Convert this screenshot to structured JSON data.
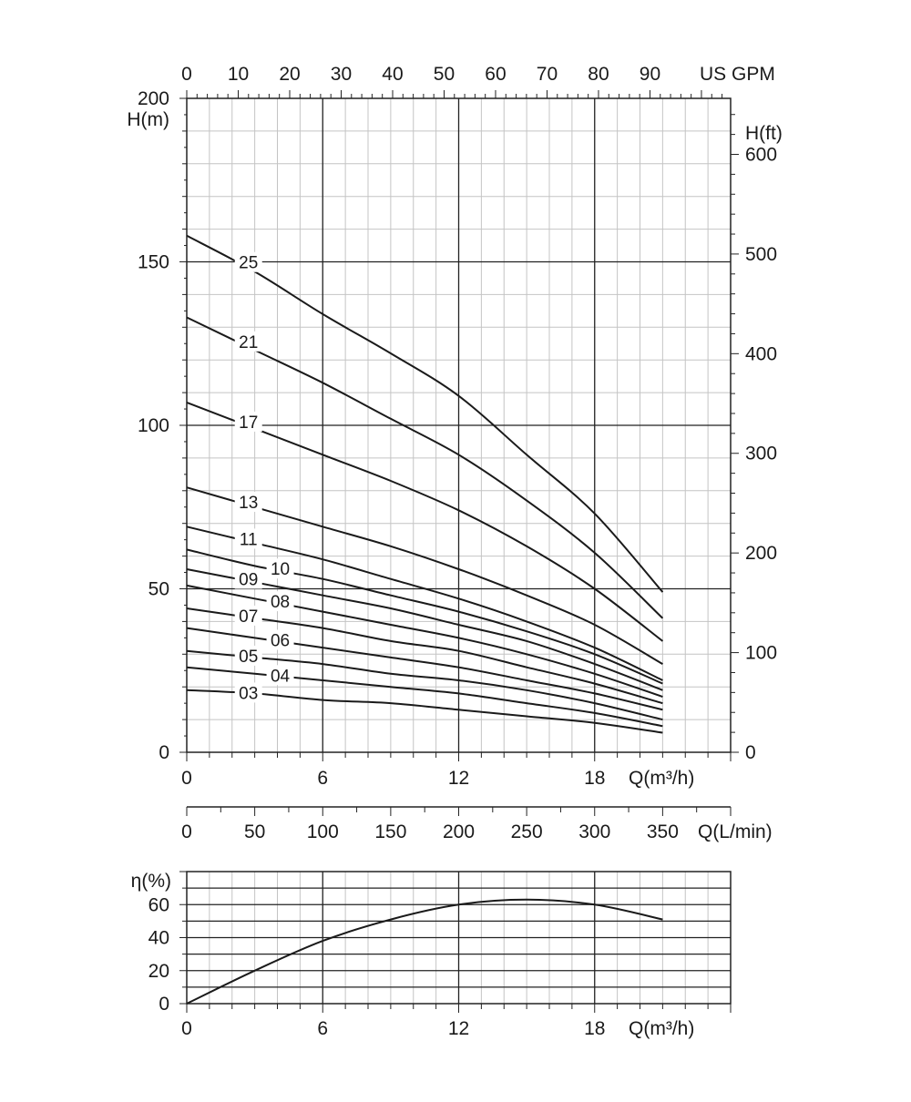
{
  "chart_data": [
    {
      "type": "line",
      "title": "",
      "xlabel": "Q(m³/h)",
      "ylabel": "H(m)",
      "xlim": [
        0,
        24
      ],
      "ylim": [
        0,
        200
      ],
      "x_ticks": [
        "0",
        "6",
        "12",
        "18"
      ],
      "y_ticks": [
        "0",
        "50",
        "100",
        "150",
        "200"
      ],
      "grid": true,
      "secondary_axes": {
        "top": {
          "label": "US GPM",
          "range": [
            0,
            105.67
          ],
          "ticks": [
            "0",
            "10",
            "20",
            "30",
            "40",
            "50",
            "60",
            "70",
            "80",
            "90"
          ]
        },
        "right": {
          "label": "H(ft)",
          "range": [
            0,
            656.2
          ],
          "ticks": [
            "0",
            "100",
            "200",
            "300",
            "400",
            "500",
            "600"
          ]
        },
        "bottom_lmin": {
          "label": "Q(L/min)",
          "range": [
            0,
            400
          ],
          "ticks": [
            "0",
            "50",
            "100",
            "150",
            "200",
            "250",
            "300",
            "350"
          ]
        }
      },
      "series": [
        {
          "name": "25",
          "x": [
            0,
            3,
            6,
            9,
            12,
            15,
            18,
            21
          ],
          "values": [
            158,
            147,
            134,
            122,
            109,
            91,
            73,
            49
          ]
        },
        {
          "name": "21",
          "x": [
            0,
            3,
            6,
            9,
            12,
            15,
            18,
            21
          ],
          "values": [
            133,
            123,
            113,
            102,
            91,
            77,
            61,
            41
          ]
        },
        {
          "name": "17",
          "x": [
            0,
            3,
            6,
            9,
            12,
            15,
            18,
            21
          ],
          "values": [
            107,
            99,
            91,
            83,
            74,
            63,
            50,
            34
          ]
        },
        {
          "name": "13",
          "x": [
            0,
            3,
            6,
            9,
            12,
            15,
            18,
            21
          ],
          "values": [
            81,
            75,
            69,
            63,
            56,
            48,
            39,
            27
          ]
        },
        {
          "name": "11",
          "x": [
            0,
            3,
            6,
            9,
            12,
            15,
            18,
            21
          ],
          "values": [
            69,
            64,
            59,
            53,
            47,
            40,
            32,
            22
          ]
        },
        {
          "name": "10",
          "x": [
            0,
            3,
            6,
            9,
            12,
            15,
            18,
            21
          ],
          "values": [
            62,
            57,
            53,
            48,
            43,
            37,
            30,
            21
          ]
        },
        {
          "name": "09",
          "x": [
            0,
            3,
            6,
            9,
            12,
            15,
            18,
            21
          ],
          "values": [
            56,
            52,
            48,
            44,
            39,
            34,
            27,
            19
          ]
        },
        {
          "name": "08",
          "x": [
            0,
            3,
            6,
            9,
            12,
            15,
            18,
            21
          ],
          "values": [
            51,
            47,
            43,
            39,
            35,
            30,
            24,
            17
          ]
        },
        {
          "name": "07",
          "x": [
            0,
            3,
            6,
            9,
            12,
            15,
            18,
            21
          ],
          "values": [
            44,
            41,
            38,
            34,
            31,
            26,
            21,
            15
          ]
        },
        {
          "name": "06",
          "x": [
            0,
            3,
            6,
            9,
            12,
            15,
            18,
            21
          ],
          "values": [
            38,
            35,
            32,
            29,
            26,
            22,
            18,
            13
          ]
        },
        {
          "name": "05",
          "x": [
            0,
            3,
            6,
            9,
            12,
            15,
            18,
            21
          ],
          "values": [
            31,
            29,
            27,
            24,
            22,
            19,
            15,
            10
          ]
        },
        {
          "name": "04",
          "x": [
            0,
            3,
            6,
            9,
            12,
            15,
            18,
            21
          ],
          "values": [
            26,
            24,
            22,
            20,
            18,
            15,
            12,
            8
          ]
        },
        {
          "name": "03",
          "x": [
            0,
            3,
            6,
            9,
            12,
            15,
            18,
            21
          ],
          "values": [
            19,
            18,
            16,
            15,
            13,
            11,
            9,
            6
          ]
        }
      ]
    },
    {
      "type": "line",
      "title": "",
      "xlabel": "Q(m³/h)",
      "ylabel": "η(%)",
      "xlim": [
        0,
        24
      ],
      "ylim": [
        0,
        80
      ],
      "x_ticks": [
        "0",
        "6",
        "12",
        "18"
      ],
      "y_ticks": [
        "0",
        "20",
        "40",
        "60"
      ],
      "grid": true,
      "series": [
        {
          "x": [
            0,
            3,
            6,
            9,
            12,
            15,
            18,
            21
          ],
          "values": [
            0,
            20,
            38,
            51,
            60,
            63,
            60,
            51
          ]
        }
      ]
    }
  ]
}
